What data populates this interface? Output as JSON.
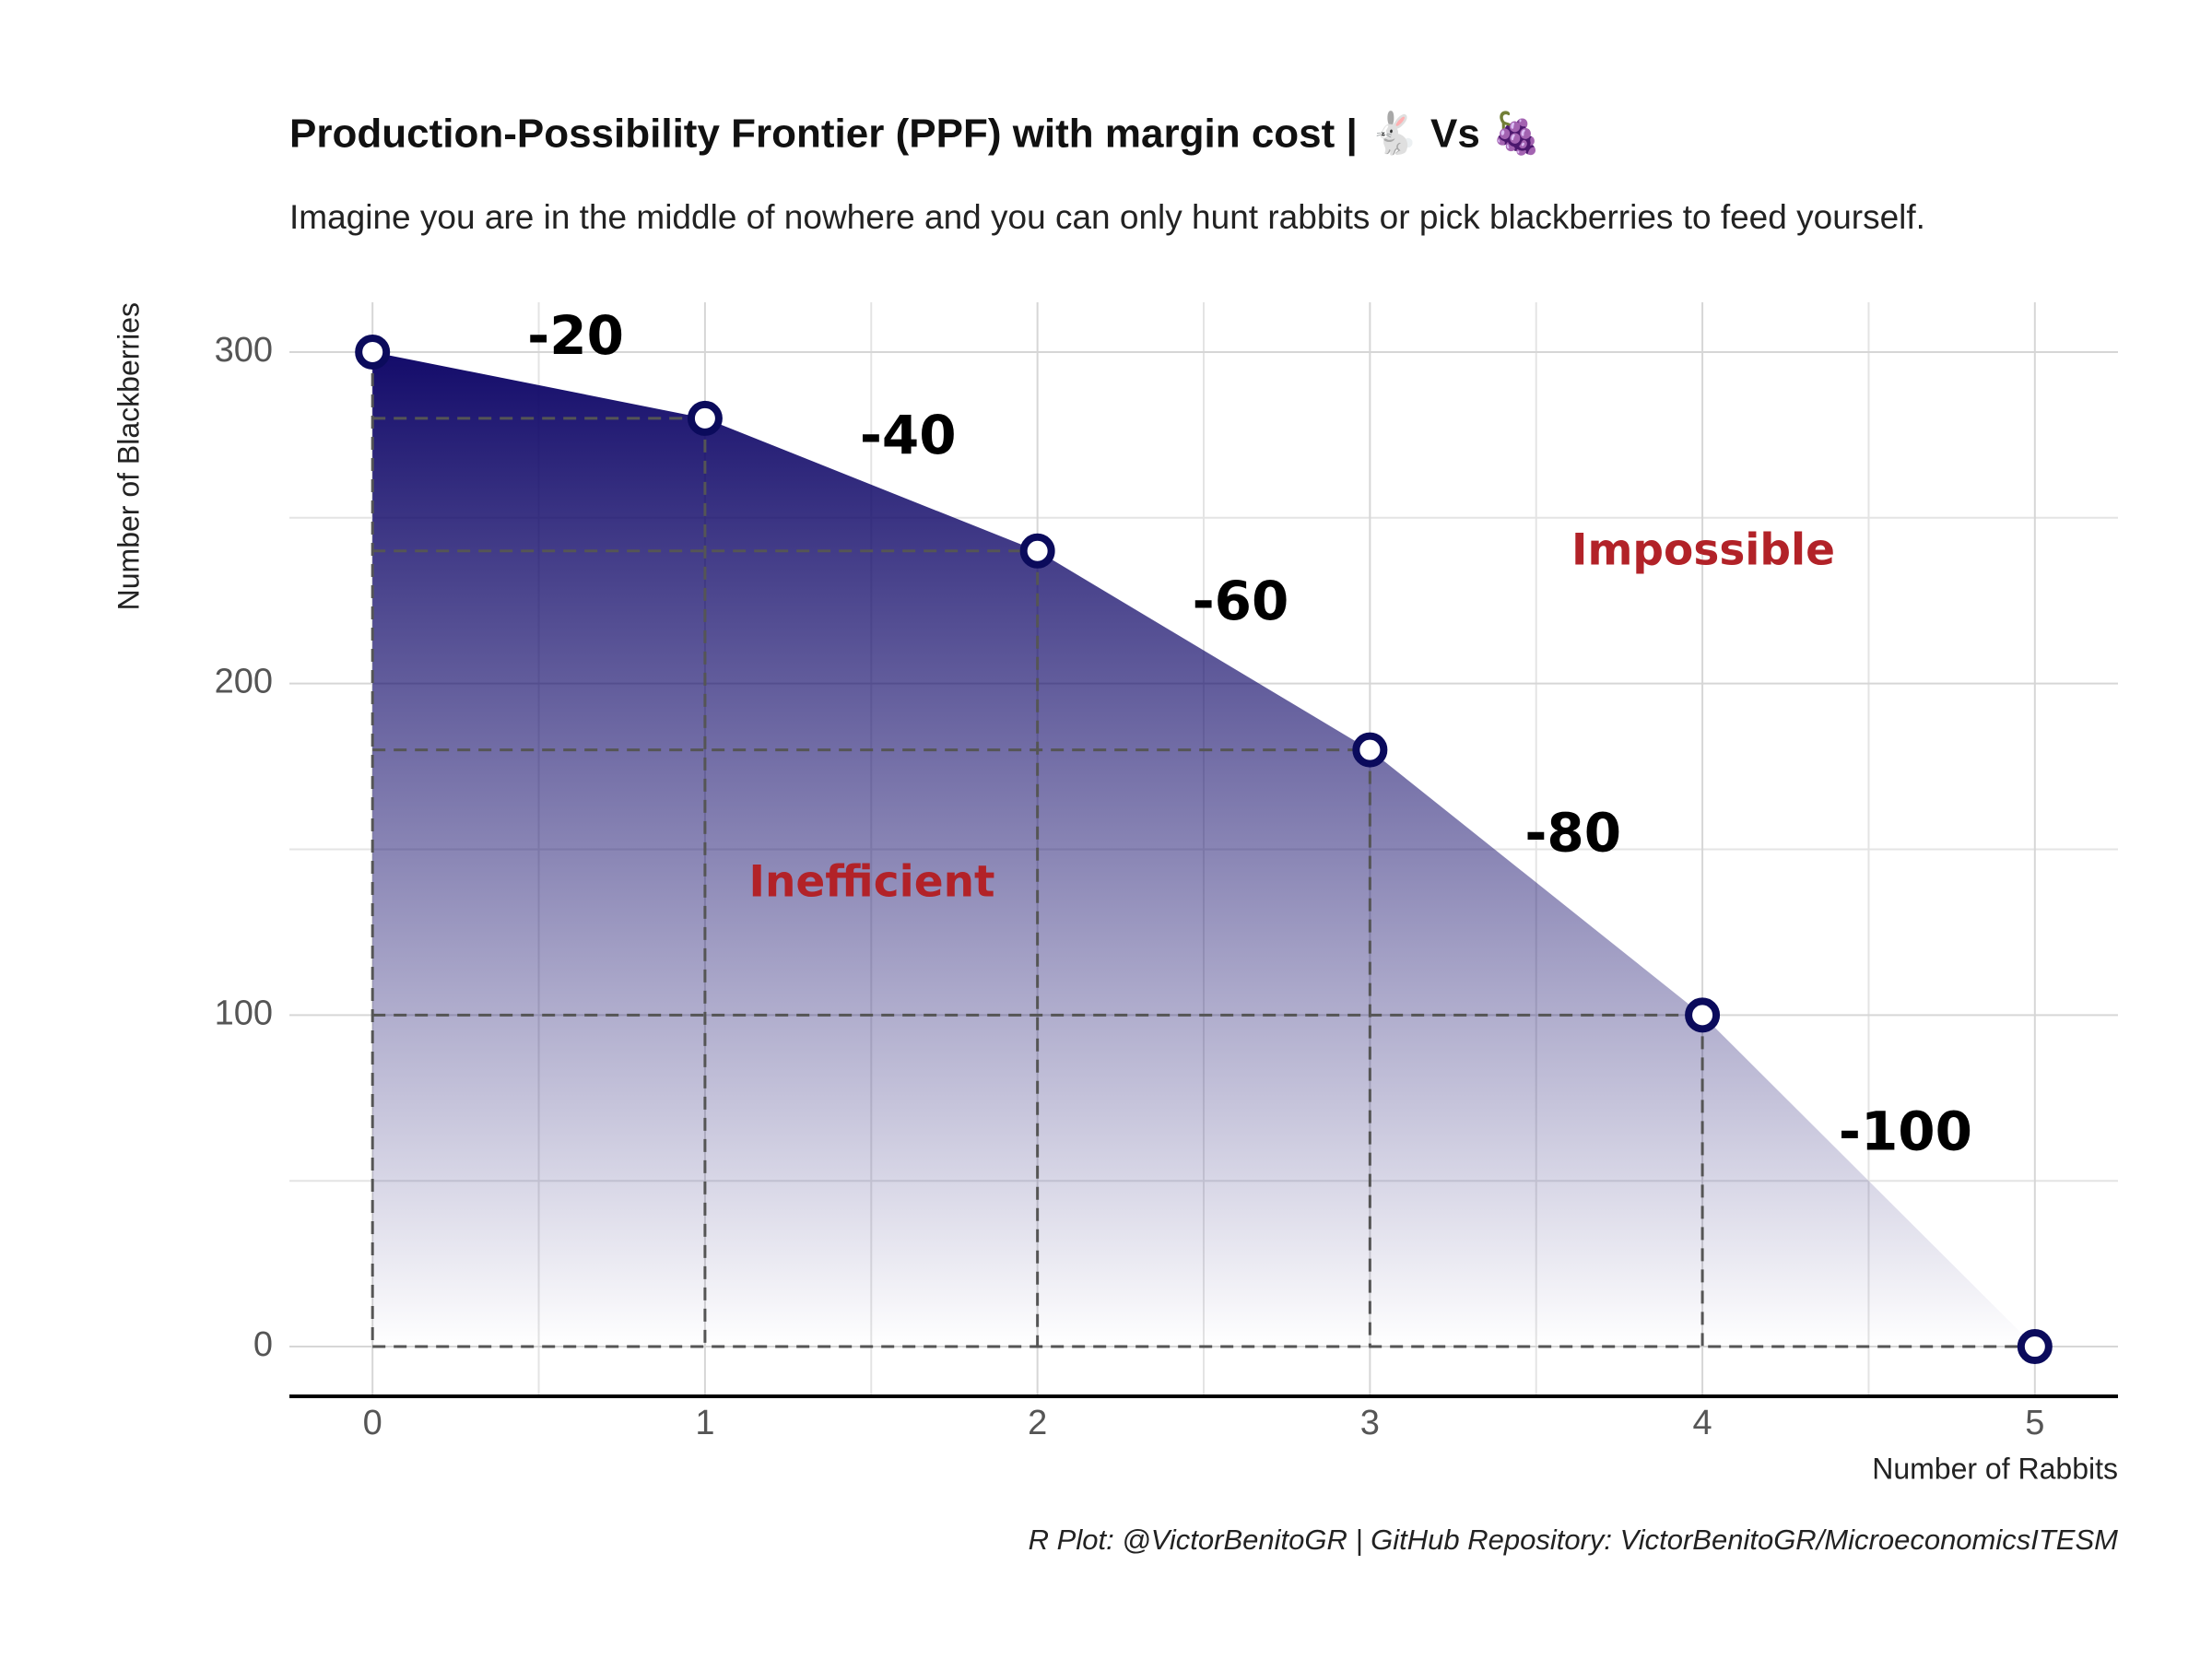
{
  "chart_data": {
    "type": "area",
    "title": "Production-Possibility Frontier (PPF) with margin cost | 🐇 Vs 🍇",
    "subtitle": "Imagine you are in the middle of nowhere and you can only hunt rabbits or pick blackberries to feed yourself.",
    "caption": "R Plot: @VictorBenitoGR | GitHub Repository: VictorBenitoGR/MicroeconomicsITESM",
    "x_label": "Number of Rabbits",
    "y_label": "Number of Blackberries",
    "x": [
      0,
      1,
      2,
      3,
      4,
      5
    ],
    "series": [
      {
        "name": "PPF",
        "color": "#0b0b5c",
        "values": [
          300,
          280,
          240,
          180,
          100,
          0
        ]
      }
    ],
    "margin_cost": [
      -20,
      -40,
      -60,
      -80,
      -100
    ],
    "annotations": [
      "Inefficient",
      "Impossible"
    ],
    "annotation_color": "#b22228",
    "xlim": [
      -0.25,
      5.25
    ],
    "ylim": [
      -15,
      315
    ],
    "xticks": [
      0,
      1,
      2,
      3,
      4,
      5
    ],
    "yticks": [
      0,
      100,
      200,
      300
    ],
    "x_minor_ticks": [
      0.5,
      1.5,
      2.5,
      3.5,
      4.5
    ],
    "y_minor_ticks": [
      50,
      150,
      250
    ],
    "grid": true
  }
}
